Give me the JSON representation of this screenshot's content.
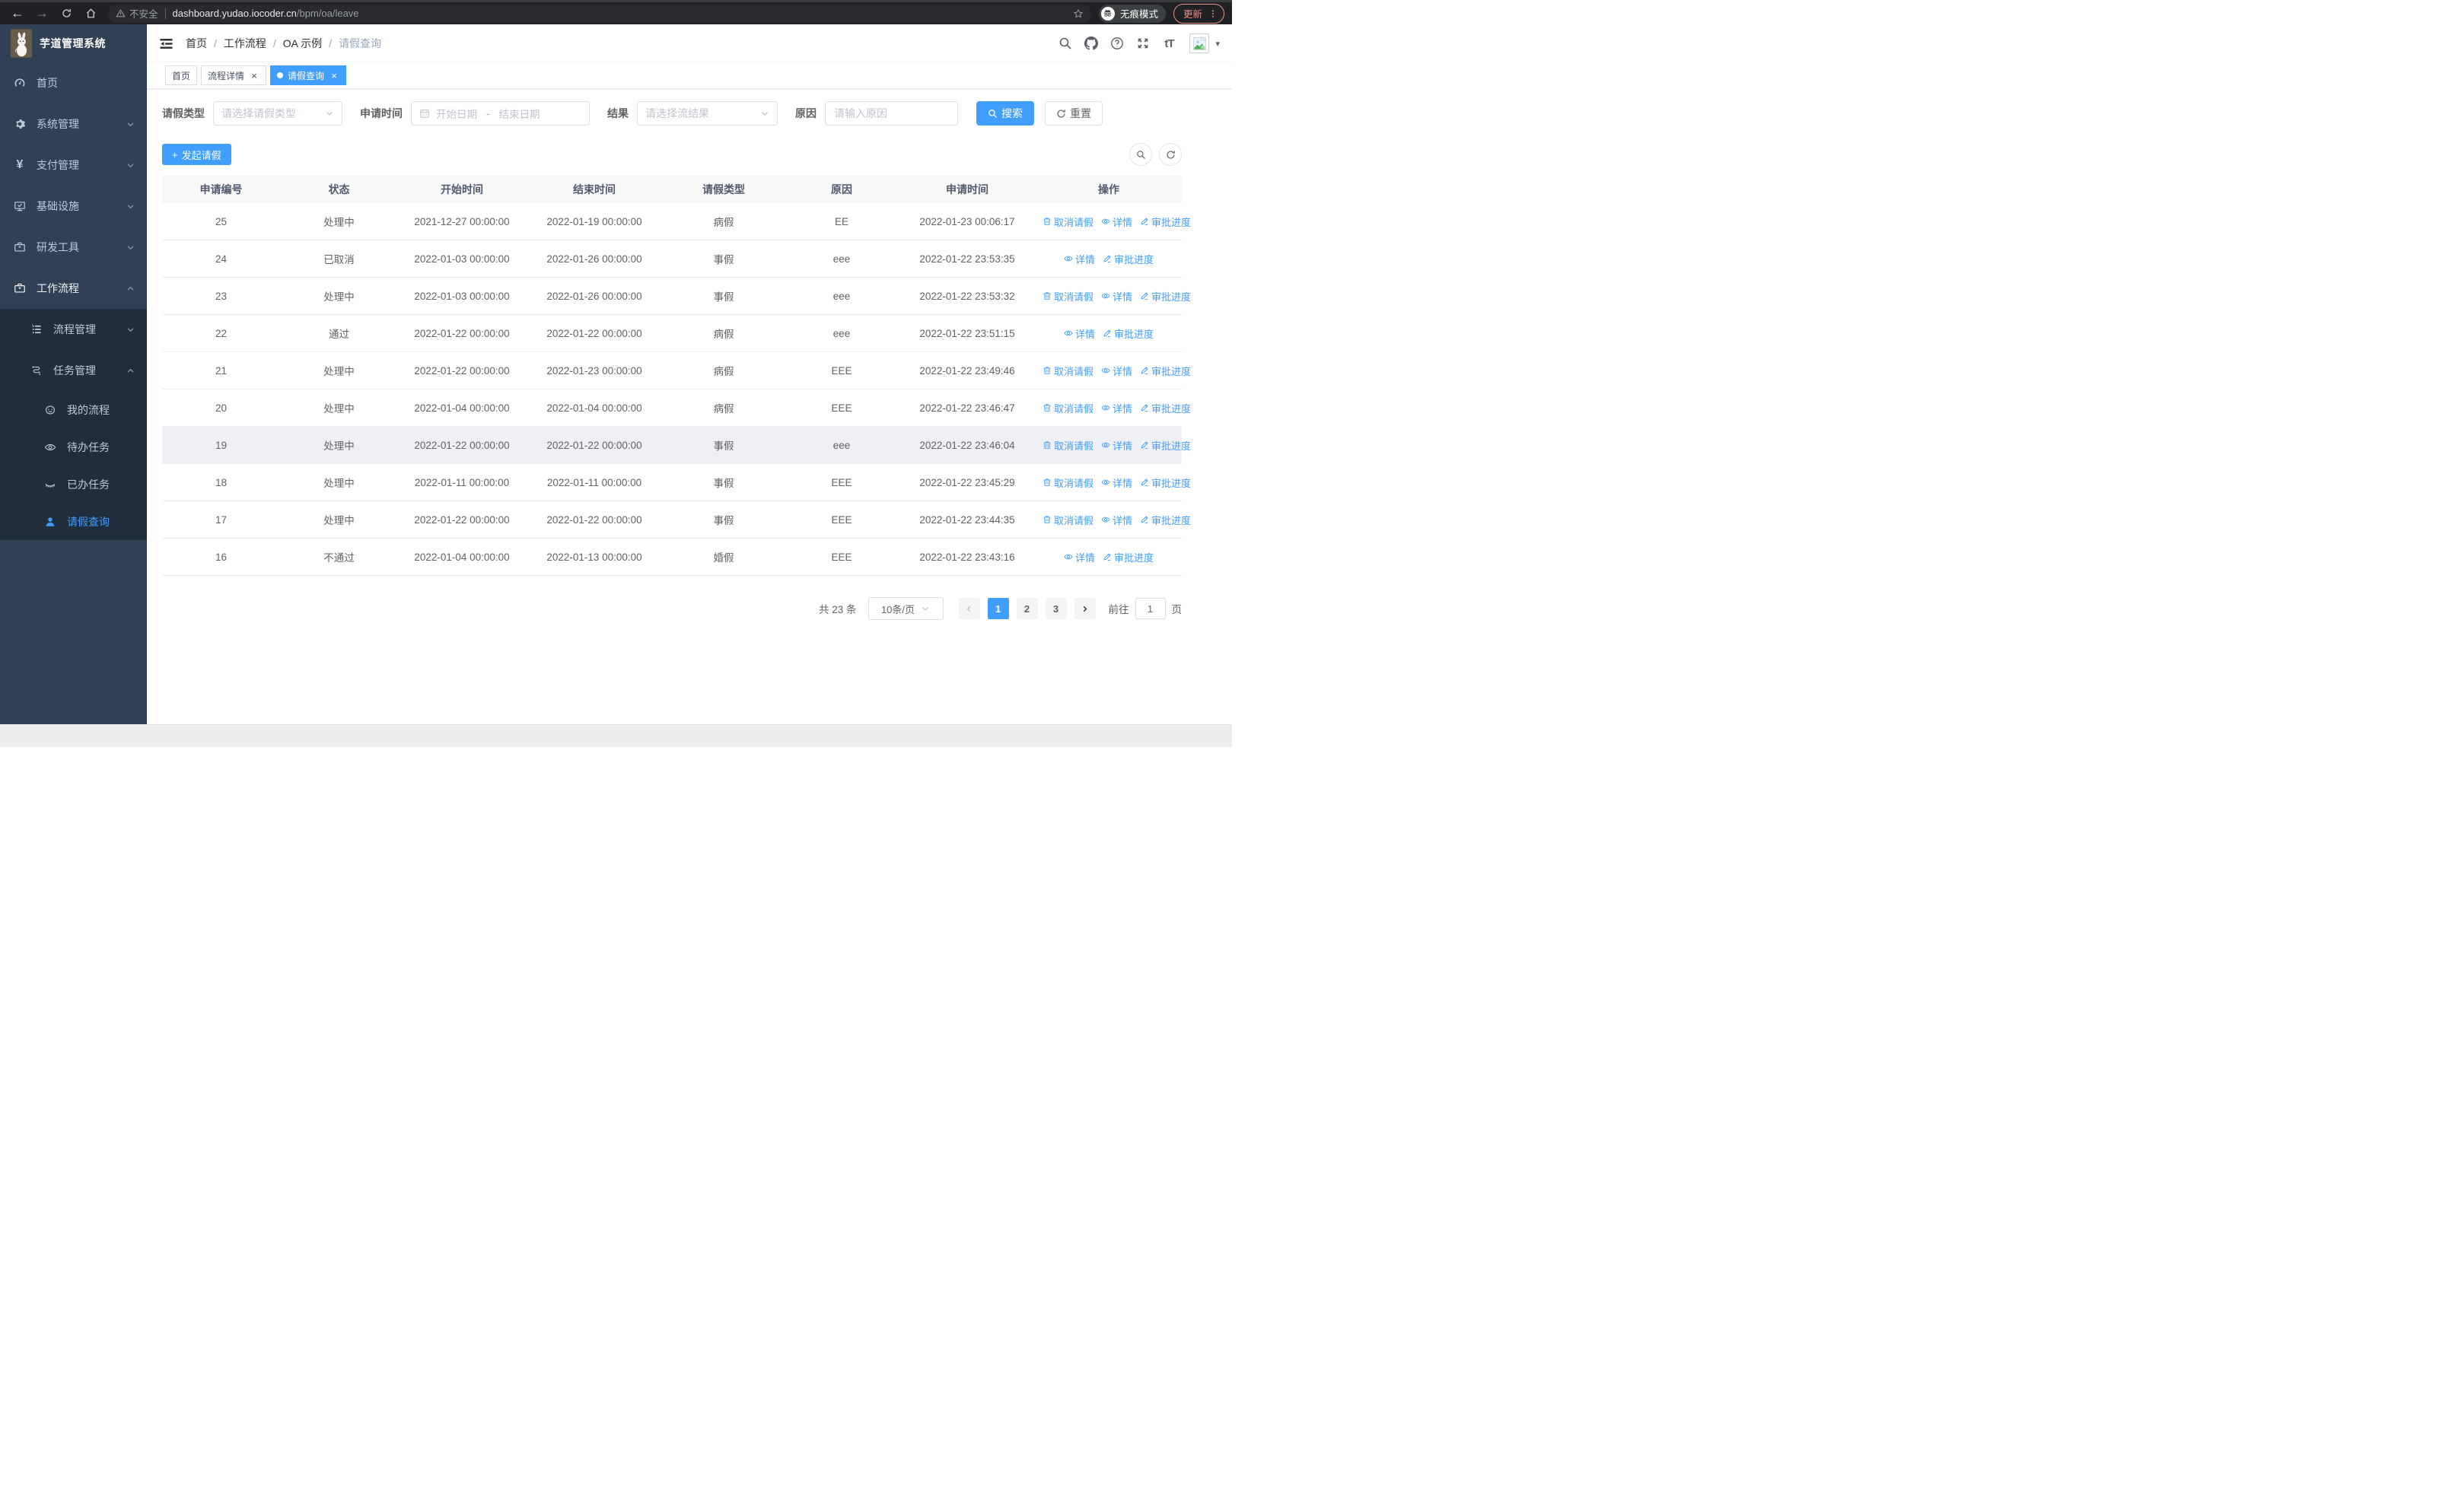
{
  "browser": {
    "security_label": "不安全",
    "url_host": "dashboard.yudao.iocoder.cn",
    "url_path": "/bpm/oa/leave",
    "incognito_label": "无痕模式",
    "update_label": "更新"
  },
  "header": {
    "app_title": "芋道管理系统",
    "font_size_glyph": "tT",
    "breadcrumb": [
      "首页",
      "工作流程",
      "OA 示例",
      "请假查询"
    ]
  },
  "tabs": [
    {
      "label": "首页",
      "closable": false,
      "active": false
    },
    {
      "label": "流程详情",
      "closable": true,
      "active": false
    },
    {
      "label": "请假查询",
      "closable": true,
      "active": true
    }
  ],
  "sidebar": {
    "items": [
      {
        "label": "首页",
        "icon": "dashboard-icon",
        "level": 1
      },
      {
        "label": "系统管理",
        "icon": "gear-icon",
        "level": 1,
        "chevron": "down"
      },
      {
        "label": "支付管理",
        "icon": "yen-icon",
        "level": 1,
        "chevron": "down"
      },
      {
        "label": "基础设施",
        "icon": "monitor-icon",
        "level": 1,
        "chevron": "down"
      },
      {
        "label": "研发工具",
        "icon": "briefcase-icon",
        "level": 1,
        "chevron": "down"
      },
      {
        "label": "工作流程",
        "icon": "briefcase-icon",
        "level": 1,
        "chevron": "up",
        "open": true
      },
      {
        "label": "流程管理",
        "icon": "list-icon",
        "level": 2,
        "chevron": "down"
      },
      {
        "label": "任务管理",
        "icon": "tree-icon",
        "level": 2,
        "chevron": "up"
      },
      {
        "label": "我的流程",
        "icon": "face-icon",
        "level": 3
      },
      {
        "label": "待办任务",
        "icon": "eye-open-icon",
        "level": 3
      },
      {
        "label": "已办任务",
        "icon": "eye-closed-icon",
        "level": 3
      },
      {
        "label": "请假查询",
        "icon": "user-icon",
        "level": 3,
        "active": true
      }
    ]
  },
  "filters": {
    "leave_type_label": "请假类型",
    "leave_type_placeholder": "请选择请假类型",
    "apply_time_label": "申请时间",
    "date_start_placeholder": "开始日期",
    "date_separator": "-",
    "date_end_placeholder": "结束日期",
    "result_label": "结果",
    "result_placeholder": "请选择流结果",
    "reason_label": "原因",
    "reason_placeholder": "请输入原因",
    "search_label": "搜索",
    "reset_label": "重置"
  },
  "toolbar": {
    "create_label": "发起请假"
  },
  "table": {
    "columns": [
      "申请编号",
      "状态",
      "开始时间",
      "结束时间",
      "请假类型",
      "原因",
      "申请时间",
      "操作"
    ],
    "action_labels": {
      "cancel": "取消请假",
      "detail": "详情",
      "progress": "审批进度"
    },
    "rows": [
      {
        "id": "25",
        "status": "处理中",
        "start": "2021-12-27 00:00:00",
        "end": "2022-01-19 00:00:00",
        "type": "病假",
        "reason": "EE",
        "apply_time": "2022-01-23 00:06:17",
        "actions": [
          "cancel",
          "detail",
          "progress"
        ]
      },
      {
        "id": "24",
        "status": "已取消",
        "start": "2022-01-03 00:00:00",
        "end": "2022-01-26 00:00:00",
        "type": "事假",
        "reason": "eee",
        "apply_time": "2022-01-22 23:53:35",
        "actions": [
          "detail",
          "progress"
        ]
      },
      {
        "id": "23",
        "status": "处理中",
        "start": "2022-01-03 00:00:00",
        "end": "2022-01-26 00:00:00",
        "type": "事假",
        "reason": "eee",
        "apply_time": "2022-01-22 23:53:32",
        "actions": [
          "cancel",
          "detail",
          "progress"
        ]
      },
      {
        "id": "22",
        "status": "通过",
        "start": "2022-01-22 00:00:00",
        "end": "2022-01-22 00:00:00",
        "type": "病假",
        "reason": "eee",
        "apply_time": "2022-01-22 23:51:15",
        "actions": [
          "detail",
          "progress"
        ]
      },
      {
        "id": "21",
        "status": "处理中",
        "start": "2022-01-22 00:00:00",
        "end": "2022-01-23 00:00:00",
        "type": "病假",
        "reason": "EEE",
        "apply_time": "2022-01-22 23:49:46",
        "actions": [
          "cancel",
          "detail",
          "progress"
        ]
      },
      {
        "id": "20",
        "status": "处理中",
        "start": "2022-01-04 00:00:00",
        "end": "2022-01-04 00:00:00",
        "type": "病假",
        "reason": "EEE",
        "apply_time": "2022-01-22 23:46:47",
        "actions": [
          "cancel",
          "detail",
          "progress"
        ]
      },
      {
        "id": "19",
        "status": "处理中",
        "start": "2022-01-22 00:00:00",
        "end": "2022-01-22 00:00:00",
        "type": "事假",
        "reason": "eee",
        "apply_time": "2022-01-22 23:46:04",
        "actions": [
          "cancel",
          "detail",
          "progress"
        ],
        "hovered": true
      },
      {
        "id": "18",
        "status": "处理中",
        "start": "2022-01-11 00:00:00",
        "end": "2022-01-11 00:00:00",
        "type": "事假",
        "reason": "EEE",
        "apply_time": "2022-01-22 23:45:29",
        "actions": [
          "cancel",
          "detail",
          "progress"
        ]
      },
      {
        "id": "17",
        "status": "处理中",
        "start": "2022-01-22 00:00:00",
        "end": "2022-01-22 00:00:00",
        "type": "事假",
        "reason": "EEE",
        "apply_time": "2022-01-22 23:44:35",
        "actions": [
          "cancel",
          "detail",
          "progress"
        ]
      },
      {
        "id": "16",
        "status": "不通过",
        "start": "2022-01-04 00:00:00",
        "end": "2022-01-13 00:00:00",
        "type": "婚假",
        "reason": "EEE",
        "apply_time": "2022-01-22 23:43:16",
        "actions": [
          "detail",
          "progress"
        ]
      }
    ]
  },
  "pagination": {
    "total_label": "共 23 条",
    "page_size_label": "10条/页",
    "pages": [
      "1",
      "2",
      "3"
    ],
    "active_page": "1",
    "goto_label": "前往",
    "goto_value": "1",
    "goto_suffix": "页"
  },
  "colors": {
    "primary": "#409eff",
    "sidebar_bg": "#304156",
    "sidebar_submenu_bg": "#1f2d3d",
    "update_accent": "#f28b82",
    "table_header_bg": "#f8f8f9"
  }
}
